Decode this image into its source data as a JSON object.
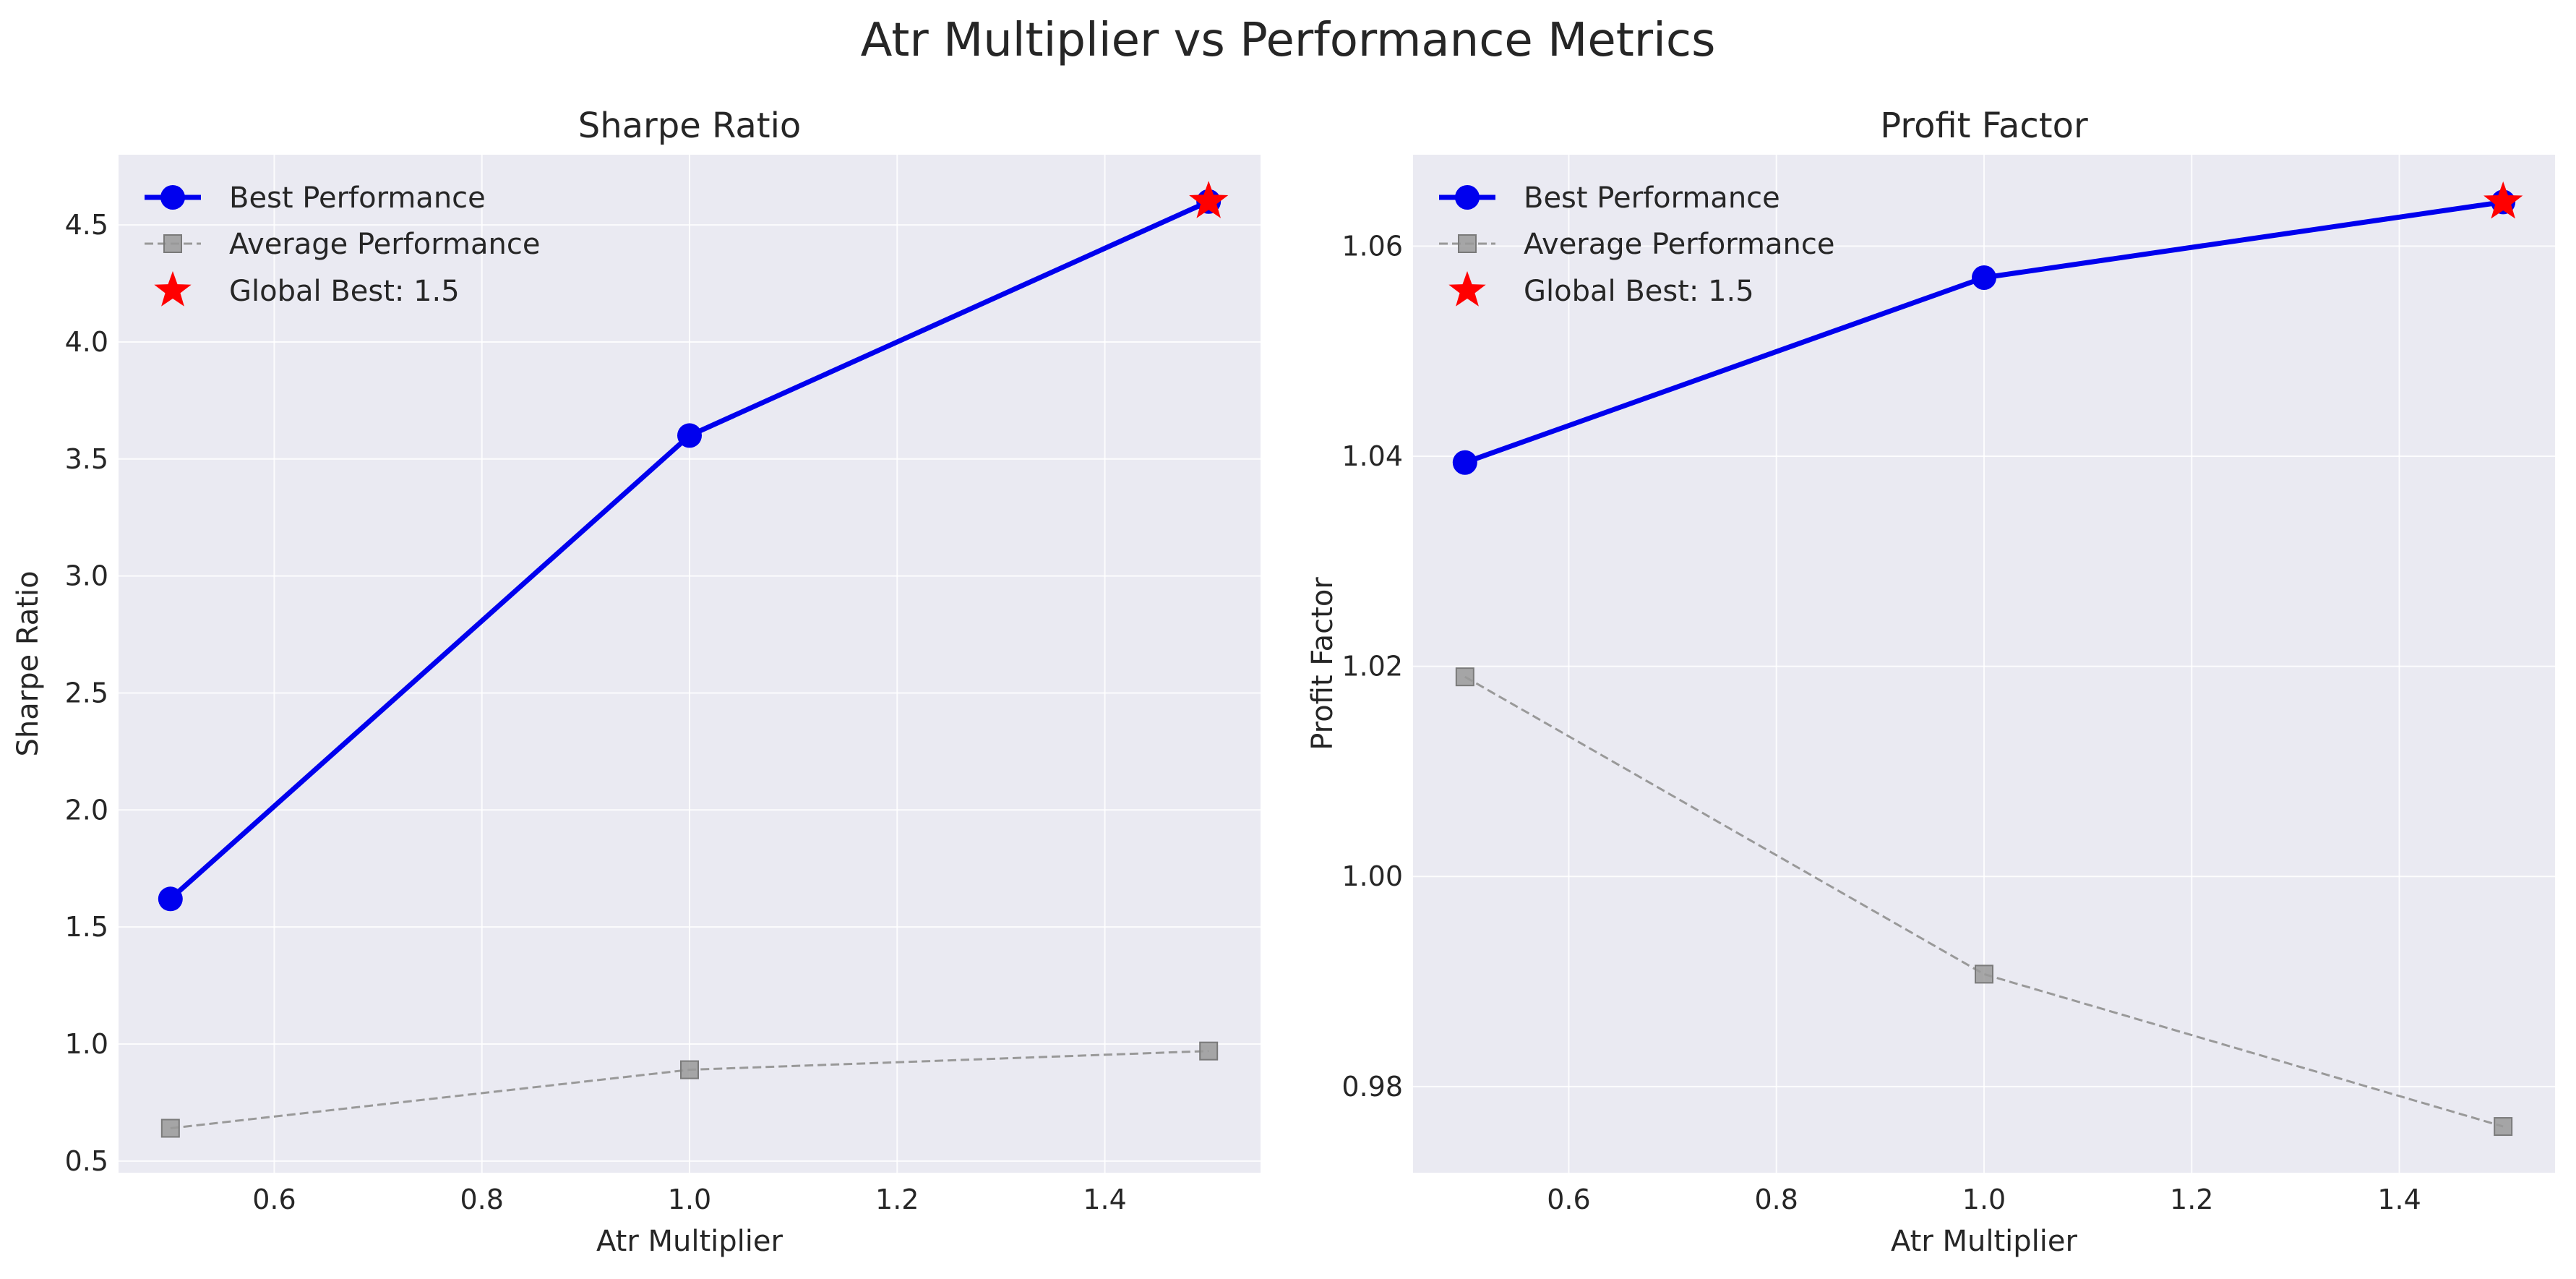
{
  "figure": {
    "suptitle": "Atr Multiplier vs Performance Metrics"
  },
  "colors": {
    "plot_background": "#eaeaf2",
    "grid": "#ffffff",
    "best": "#0000ee",
    "average": "#999999",
    "global_best": "#ff0000"
  },
  "chart_data": [
    {
      "type": "line",
      "title": "Sharpe Ratio",
      "xlabel": "Atr Multiplier",
      "ylabel": "Sharpe Ratio",
      "x": [
        0.5,
        1.0,
        1.5
      ],
      "xlim": [
        0.45,
        1.55
      ],
      "ylim": [
        0.45,
        4.8
      ],
      "xticks": [
        0.6,
        0.8,
        1.0,
        1.2,
        1.4
      ],
      "xtick_labels": [
        "0.6",
        "0.8",
        "1.0",
        "1.2",
        "1.4"
      ],
      "yticks": [
        0.5,
        1.0,
        1.5,
        2.0,
        2.5,
        3.0,
        3.5,
        4.0,
        4.5
      ],
      "ytick_labels": [
        "0.5",
        "1.0",
        "1.5",
        "2.0",
        "2.5",
        "3.0",
        "3.5",
        "4.0",
        "4.5"
      ],
      "grid": true,
      "legend_position": "top-left",
      "series": [
        {
          "name": "Best Performance",
          "values": [
            1.62,
            3.6,
            4.6
          ],
          "marker": "circle",
          "line": "solid"
        },
        {
          "name": "Average Performance",
          "values": [
            0.64,
            0.89,
            0.97
          ],
          "marker": "square",
          "line": "dashed"
        }
      ],
      "highlight": {
        "name": "Global Best: 1.5",
        "x": 1.5,
        "y": 4.6,
        "marker": "star"
      }
    },
    {
      "type": "line",
      "title": "Profit Factor",
      "xlabel": "Atr Multiplier",
      "ylabel": "Profit Factor",
      "x": [
        0.5,
        1.0,
        1.5
      ],
      "xlim": [
        0.45,
        1.55
      ],
      "ylim": [
        0.9718,
        1.0687
      ],
      "xticks": [
        0.6,
        0.8,
        1.0,
        1.2,
        1.4
      ],
      "xtick_labels": [
        "0.6",
        "0.8",
        "1.0",
        "1.2",
        "1.4"
      ],
      "yticks": [
        0.98,
        1.0,
        1.02,
        1.04,
        1.06
      ],
      "ytick_labels": [
        "0.98",
        "1.00",
        "1.02",
        "1.04",
        "1.06"
      ],
      "grid": true,
      "legend_position": "top-left",
      "series": [
        {
          "name": "Best Performance",
          "values": [
            1.0394,
            1.057,
            1.0642
          ],
          "marker": "circle",
          "line": "solid"
        },
        {
          "name": "Average Performance",
          "values": [
            1.019,
            0.9907,
            0.9762
          ],
          "marker": "square",
          "line": "dashed"
        }
      ],
      "highlight": {
        "name": "Global Best: 1.5",
        "x": 1.5,
        "y": 1.0642,
        "marker": "star"
      }
    }
  ]
}
